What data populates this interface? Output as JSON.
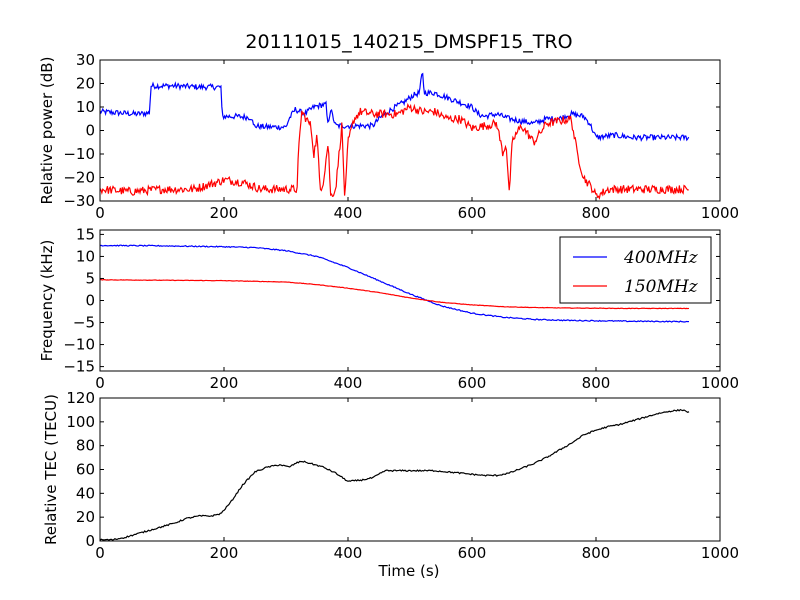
{
  "figure": {
    "title": "20111015_140215_DMSPF15_TRO",
    "xlabel": "Time (s)"
  },
  "colors": {
    "series_400": "#0000ff",
    "series_150": "#ff0000",
    "tec": "#000000",
    "axes": "#000000",
    "background": "#ffffff"
  },
  "chart_data": [
    {
      "type": "line",
      "panel": "power",
      "title": "20111015_140215_DMSPF15_TRO",
      "xlabel": "",
      "ylabel": "Relative power (dB)",
      "xlim": [
        0,
        1000
      ],
      "ylim": [
        -30,
        30
      ],
      "xticks": [
        0,
        200,
        400,
        600,
        800,
        1000
      ],
      "yticks": [
        -30,
        -20,
        -10,
        0,
        10,
        20,
        30
      ],
      "grid": false,
      "series": [
        {
          "name": "",
          "color": "#0000ff",
          "noise": 1.2,
          "points": [
            [
              0,
              8
            ],
            [
              30,
              7.5
            ],
            [
              60,
              7
            ],
            [
              80,
              7.5
            ],
            [
              82,
              19
            ],
            [
              120,
              19
            ],
            [
              160,
              18.5
            ],
            [
              195,
              18.5
            ],
            [
              197,
              6
            ],
            [
              220,
              6
            ],
            [
              245,
              5.5
            ],
            [
              247,
              2
            ],
            [
              270,
              1.5
            ],
            [
              300,
              1.5
            ],
            [
              305,
              5
            ],
            [
              315,
              9
            ],
            [
              330,
              7
            ],
            [
              345,
              10
            ],
            [
              360,
              11
            ],
            [
              365,
              11
            ],
            [
              367,
              2
            ],
            [
              372,
              9
            ],
            [
              380,
              2
            ],
            [
              390,
              2
            ],
            [
              420,
              2
            ],
            [
              440,
              2
            ],
            [
              450,
              5
            ],
            [
              470,
              9
            ],
            [
              490,
              12
            ],
            [
              505,
              15
            ],
            [
              515,
              16
            ],
            [
              520,
              25
            ],
            [
              523,
              16
            ],
            [
              540,
              16
            ],
            [
              560,
              14
            ],
            [
              580,
              12
            ],
            [
              600,
              10
            ],
            [
              610,
              7
            ],
            [
              620,
              6
            ],
            [
              640,
              7
            ],
            [
              660,
              5
            ],
            [
              680,
              4
            ],
            [
              700,
              3
            ],
            [
              720,
              5
            ],
            [
              740,
              5
            ],
            [
              760,
              7
            ],
            [
              780,
              6
            ],
            [
              790,
              3
            ],
            [
              800,
              -3
            ],
            [
              830,
              -2
            ],
            [
              860,
              -3
            ],
            [
              900,
              -3
            ],
            [
              930,
              -3
            ],
            [
              950,
              -3
            ]
          ]
        },
        {
          "name": "",
          "color": "#ff0000",
          "noise": 1.8,
          "points": [
            [
              0,
              -25
            ],
            [
              50,
              -26
            ],
            [
              100,
              -25
            ],
            [
              150,
              -25
            ],
            [
              190,
              -22
            ],
            [
              200,
              -21
            ],
            [
              230,
              -22
            ],
            [
              260,
              -25
            ],
            [
              300,
              -25
            ],
            [
              318,
              -25
            ],
            [
              320,
              -10
            ],
            [
              325,
              8
            ],
            [
              330,
              6
            ],
            [
              340,
              2
            ],
            [
              345,
              -10
            ],
            [
              350,
              -2
            ],
            [
              355,
              -25
            ],
            [
              360,
              -22
            ],
            [
              368,
              -5
            ],
            [
              372,
              -28
            ],
            [
              380,
              -25
            ],
            [
              390,
              2
            ],
            [
              395,
              -30
            ],
            [
              400,
              -5
            ],
            [
              410,
              5
            ],
            [
              420,
              8
            ],
            [
              440,
              7
            ],
            [
              460,
              7
            ],
            [
              480,
              7
            ],
            [
              500,
              10
            ],
            [
              520,
              8
            ],
            [
              540,
              8
            ],
            [
              560,
              5
            ],
            [
              580,
              5
            ],
            [
              600,
              1
            ],
            [
              620,
              2
            ],
            [
              640,
              3
            ],
            [
              650,
              -10
            ],
            [
              655,
              -5
            ],
            [
              660,
              -27
            ],
            [
              665,
              -5
            ],
            [
              670,
              -2
            ],
            [
              680,
              2
            ],
            [
              700,
              -5
            ],
            [
              720,
              3
            ],
            [
              740,
              4
            ],
            [
              760,
              5
            ],
            [
              770,
              -10
            ],
            [
              780,
              -20
            ],
            [
              795,
              -25
            ],
            [
              800,
              -28
            ],
            [
              820,
              -25
            ],
            [
              860,
              -25
            ],
            [
              900,
              -25
            ],
            [
              930,
              -25
            ],
            [
              950,
              -25
            ]
          ]
        }
      ]
    },
    {
      "type": "line",
      "panel": "frequency",
      "title": "",
      "xlabel": "",
      "ylabel": "Frequency (kHz)",
      "xlim": [
        0,
        1000
      ],
      "ylim": [
        -16,
        16
      ],
      "xticks": [
        0,
        200,
        400,
        600,
        800,
        1000
      ],
      "yticks": [
        -15,
        -10,
        -5,
        0,
        5,
        10,
        15
      ],
      "grid": false,
      "legend": "top-right",
      "series": [
        {
          "name": "400MHz",
          "color": "#0000ff",
          "noise": 0.12,
          "points": [
            [
              0,
              12.5
            ],
            [
              100,
              12.4
            ],
            [
              200,
              12.2
            ],
            [
              250,
              12
            ],
            [
              300,
              11.3
            ],
            [
              350,
              10
            ],
            [
              400,
              7.5
            ],
            [
              450,
              4.5
            ],
            [
              500,
              1.5
            ],
            [
              550,
              -1.2
            ],
            [
              600,
              -2.9
            ],
            [
              650,
              -3.8
            ],
            [
              700,
              -4.3
            ],
            [
              750,
              -4.5
            ],
            [
              800,
              -4.6
            ],
            [
              850,
              -4.7
            ],
            [
              900,
              -4.75
            ],
            [
              950,
              -4.8
            ]
          ]
        },
        {
          "name": "150MHz",
          "color": "#ff0000",
          "noise": 0.05,
          "points": [
            [
              0,
              4.7
            ],
            [
              100,
              4.6
            ],
            [
              200,
              4.5
            ],
            [
              300,
              4.2
            ],
            [
              350,
              3.6
            ],
            [
              400,
              2.8
            ],
            [
              450,
              1.8
            ],
            [
              500,
              0.6
            ],
            [
              550,
              -0.4
            ],
            [
              600,
              -1.0
            ],
            [
              650,
              -1.4
            ],
            [
              700,
              -1.6
            ],
            [
              750,
              -1.7
            ],
            [
              800,
              -1.75
            ],
            [
              850,
              -1.8
            ],
            [
              900,
              -1.8
            ],
            [
              950,
              -1.8
            ]
          ]
        }
      ]
    },
    {
      "type": "line",
      "panel": "tec",
      "title": "",
      "xlabel": "Time (s)",
      "ylabel": "Relative TEC (TECU)",
      "xlim": [
        0,
        1000
      ],
      "ylim": [
        0,
        120
      ],
      "xticks": [
        0,
        200,
        400,
        600,
        800,
        1000
      ],
      "yticks": [
        0,
        20,
        40,
        60,
        80,
        100,
        120
      ],
      "grid": false,
      "series": [
        {
          "name": "",
          "color": "#000000",
          "noise": 0.6,
          "points": [
            [
              0,
              1
            ],
            [
              20,
              1
            ],
            [
              40,
              3
            ],
            [
              60,
              6
            ],
            [
              80,
              9
            ],
            [
              100,
              12
            ],
            [
              120,
              15
            ],
            [
              140,
              19
            ],
            [
              160,
              21
            ],
            [
              180,
              21
            ],
            [
              195,
              23
            ],
            [
              210,
              32
            ],
            [
              230,
              47
            ],
            [
              250,
              58
            ],
            [
              270,
              62
            ],
            [
              290,
              64
            ],
            [
              305,
              62
            ],
            [
              315,
              65
            ],
            [
              325,
              67
            ],
            [
              340,
              65
            ],
            [
              360,
              62
            ],
            [
              380,
              57
            ],
            [
              400,
              50
            ],
            [
              420,
              51
            ],
            [
              440,
              53
            ],
            [
              450,
              56
            ],
            [
              460,
              59
            ],
            [
              480,
              59
            ],
            [
              500,
              59
            ],
            [
              520,
              59
            ],
            [
              540,
              59
            ],
            [
              560,
              58
            ],
            [
              580,
              57
            ],
            [
              600,
              56
            ],
            [
              620,
              55
            ],
            [
              640,
              55
            ],
            [
              660,
              57
            ],
            [
              680,
              61
            ],
            [
              700,
              65
            ],
            [
              720,
              70
            ],
            [
              740,
              76
            ],
            [
              760,
              82
            ],
            [
              780,
              89
            ],
            [
              800,
              93
            ],
            [
              820,
              96
            ],
            [
              840,
              98
            ],
            [
              860,
              101
            ],
            [
              880,
              104
            ],
            [
              900,
              107
            ],
            [
              920,
              109
            ],
            [
              940,
              110
            ],
            [
              950,
              108
            ]
          ]
        }
      ]
    }
  ]
}
